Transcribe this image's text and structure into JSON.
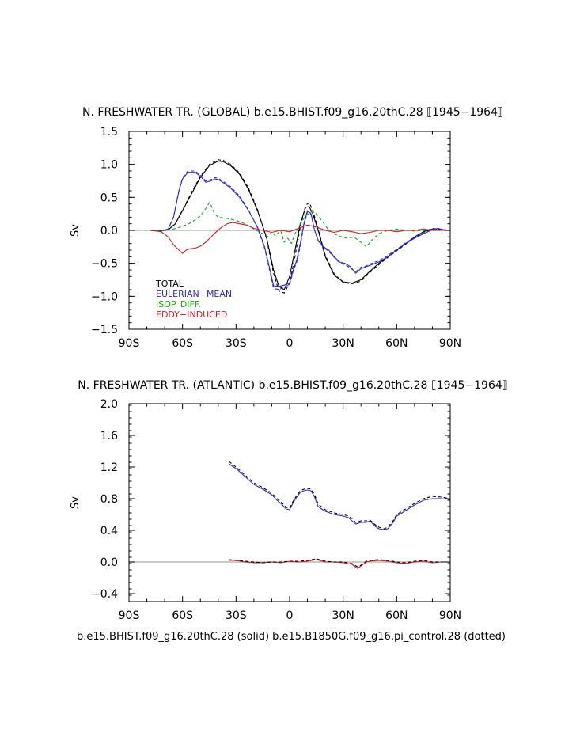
{
  "chart_data": [
    {
      "type": "line",
      "title": "N. FRESHWATER TR. (GLOBAL) b.e15.BHIST.f09_g16.20thC.28 ⟦1945−1964⟧",
      "xlabel": "",
      "ylabel": "Sv",
      "xlim": [
        -90,
        90
      ],
      "ylim": [
        -1.5,
        1.5
      ],
      "xticks": [
        -90,
        -60,
        -30,
        0,
        30,
        60,
        90
      ],
      "xtick_labels": [
        "90S",
        "60S",
        "30S",
        "0",
        "30N",
        "60N",
        "90N"
      ],
      "yticks": [
        -1.5,
        -1.0,
        -0.5,
        0.0,
        0.5,
        1.0,
        1.5
      ],
      "ytick_labels": [
        "−1.5",
        "−1.0",
        "−0.5",
        "0.0",
        "0.5",
        "1.0",
        "1.5"
      ],
      "legend": [
        "TOTAL",
        "EULERIAN−MEAN",
        "ISOP. DIFF.",
        "EDDY−INDUCED"
      ],
      "series": [
        {
          "name": "TOTAL",
          "color": "#000000",
          "dash": false,
          "x": [
            -78,
            -72,
            -68,
            -64,
            -60,
            -55,
            -50,
            -45,
            -40,
            -37,
            -33,
            -28,
            -23,
            -18,
            -13,
            -9,
            -6,
            -3,
            0,
            3,
            6,
            9,
            11,
            13,
            16,
            20,
            25,
            30,
            35,
            40,
            45,
            50,
            55,
            60,
            65,
            70,
            75,
            80,
            85,
            90
          ],
          "y": [
            0.0,
            -0.01,
            0.01,
            0.1,
            0.3,
            0.55,
            0.8,
            0.98,
            1.05,
            1.04,
            0.98,
            0.85,
            0.62,
            0.3,
            -0.1,
            -0.6,
            -0.85,
            -0.9,
            -0.7,
            -0.3,
            0.1,
            0.35,
            0.36,
            0.25,
            0.0,
            -0.4,
            -0.68,
            -0.78,
            -0.8,
            -0.75,
            -0.62,
            -0.5,
            -0.4,
            -0.3,
            -0.2,
            -0.1,
            -0.02,
            0.02,
            0.0,
            0.0
          ]
        },
        {
          "name": "TOTAL (control)",
          "color": "#000000",
          "dash": true,
          "x": [
            -78,
            -72,
            -68,
            -64,
            -60,
            -55,
            -50,
            -45,
            -40,
            -37,
            -33,
            -28,
            -23,
            -18,
            -13,
            -9,
            -6,
            -3,
            0,
            3,
            6,
            9,
            11,
            13,
            16,
            20,
            25,
            30,
            35,
            40,
            45,
            50,
            55,
            60,
            65,
            70,
            75,
            80,
            85,
            90
          ],
          "y": [
            0.0,
            -0.01,
            0.01,
            0.1,
            0.31,
            0.57,
            0.82,
            1.0,
            1.07,
            1.06,
            1.0,
            0.87,
            0.64,
            0.32,
            -0.12,
            -0.65,
            -0.92,
            -0.95,
            -0.8,
            -0.4,
            0.05,
            0.38,
            0.42,
            0.3,
            0.02,
            -0.38,
            -0.66,
            -0.79,
            -0.81,
            -0.77,
            -0.64,
            -0.52,
            -0.41,
            -0.31,
            -0.21,
            -0.11,
            -0.02,
            0.03,
            0.01,
            0.0
          ]
        },
        {
          "name": "EULERIAN−MEAN",
          "color": "#2b2bd6",
          "dash": false,
          "x": [
            -78,
            -72,
            -68,
            -65,
            -62,
            -60,
            -57,
            -53,
            -50,
            -47,
            -44,
            -42,
            -40,
            -37,
            -33,
            -28,
            -23,
            -18,
            -14,
            -11,
            -9,
            -6,
            -3,
            0,
            2,
            4,
            6,
            8,
            10,
            12,
            14,
            16,
            19,
            22,
            25,
            28,
            31,
            34,
            37,
            40,
            43,
            46,
            50,
            55,
            60,
            65,
            70,
            75,
            80,
            83,
            86,
            90
          ],
          "y": [
            0.0,
            -0.01,
            0.02,
            0.2,
            0.6,
            0.78,
            0.88,
            0.88,
            0.82,
            0.73,
            0.75,
            0.78,
            0.77,
            0.72,
            0.64,
            0.5,
            0.3,
            0.05,
            -0.25,
            -0.6,
            -0.84,
            -0.85,
            -0.83,
            -0.8,
            -0.6,
            -0.45,
            -0.2,
            0.1,
            0.3,
            0.25,
            0.0,
            -0.15,
            -0.25,
            -0.3,
            -0.4,
            -0.48,
            -0.5,
            -0.55,
            -0.65,
            -0.58,
            -0.55,
            -0.52,
            -0.48,
            -0.4,
            -0.3,
            -0.2,
            -0.12,
            -0.05,
            0.01,
            0.03,
            0.01,
            0.0
          ]
        },
        {
          "name": "EULERIAN−MEAN (control)",
          "color": "#2b2bd6",
          "dash": true,
          "x": [
            -78,
            -72,
            -68,
            -65,
            -62,
            -60,
            -57,
            -53,
            -50,
            -47,
            -44,
            -42,
            -40,
            -37,
            -33,
            -28,
            -23,
            -18,
            -14,
            -11,
            -9,
            -6,
            -3,
            0,
            2,
            4,
            6,
            8,
            10,
            12,
            14,
            16,
            19,
            22,
            25,
            28,
            31,
            34,
            37,
            40,
            43,
            46,
            50,
            55,
            60,
            65,
            70,
            75,
            80,
            83,
            86,
            90
          ],
          "y": [
            0.0,
            -0.01,
            0.02,
            0.21,
            0.61,
            0.8,
            0.9,
            0.9,
            0.84,
            0.75,
            0.77,
            0.8,
            0.79,
            0.74,
            0.66,
            0.52,
            0.31,
            0.04,
            -0.27,
            -0.63,
            -0.88,
            -0.9,
            -0.86,
            -0.82,
            -0.62,
            -0.48,
            -0.24,
            0.08,
            0.28,
            0.24,
            0.0,
            -0.16,
            -0.26,
            -0.32,
            -0.41,
            -0.49,
            -0.52,
            -0.57,
            -0.63,
            -0.56,
            -0.54,
            -0.5,
            -0.46,
            -0.38,
            -0.29,
            -0.19,
            -0.11,
            -0.04,
            0.02,
            0.03,
            0.01,
            0.0
          ]
        },
        {
          "name": "ISOP. DIFF.",
          "color": "#11aa11",
          "dash": true,
          "x": [
            -78,
            -70,
            -65,
            -60,
            -55,
            -50,
            -47,
            -45,
            -44,
            -42,
            -40,
            -35,
            -30,
            -25,
            -20,
            -15,
            -12,
            -10,
            -8,
            -5,
            -3,
            -1,
            1,
            3,
            6,
            9,
            12,
            15,
            18,
            22,
            27,
            32,
            36,
            40,
            43,
            46,
            50,
            55,
            60,
            65,
            70,
            75,
            80,
            85,
            90
          ],
          "y": [
            0.0,
            0.0,
            0.02,
            0.06,
            0.12,
            0.22,
            0.33,
            0.42,
            0.38,
            0.25,
            0.2,
            0.18,
            0.15,
            0.1,
            0.02,
            -0.05,
            -0.1,
            -0.02,
            -0.08,
            0.0,
            -0.18,
            -0.12,
            -0.2,
            -0.05,
            0.1,
            0.22,
            0.28,
            0.25,
            0.15,
            0.0,
            -0.08,
            -0.12,
            -0.1,
            -0.18,
            -0.25,
            -0.15,
            -0.05,
            0.0,
            0.02,
            0.0,
            -0.01,
            0.0,
            0.01,
            0.0,
            0.0
          ]
        },
        {
          "name": "EDDY−INDUCED",
          "color": "#d42020",
          "dash": false,
          "x": [
            -78,
            -72,
            -68,
            -65,
            -62,
            -60,
            -58,
            -56,
            -53,
            -50,
            -47,
            -44,
            -41,
            -38,
            -35,
            -32,
            -28,
            -24,
            -20,
            -15,
            -10,
            -5,
            0,
            5,
            10,
            15,
            20,
            25,
            30,
            35,
            40,
            45,
            50,
            55,
            60,
            65,
            70,
            75,
            80,
            85,
            90
          ],
          "y": [
            0.0,
            -0.02,
            -0.1,
            -0.22,
            -0.3,
            -0.35,
            -0.3,
            -0.28,
            -0.27,
            -0.24,
            -0.18,
            -0.1,
            -0.02,
            0.05,
            0.1,
            0.12,
            0.1,
            0.08,
            0.03,
            0.0,
            -0.03,
            0.0,
            -0.02,
            0.03,
            0.08,
            0.05,
            0.0,
            -0.03,
            0.0,
            -0.02,
            -0.05,
            -0.03,
            0.0,
            0.0,
            -0.02,
            0.0,
            0.0,
            0.02,
            0.0,
            0.0,
            0.0
          ]
        }
      ]
    },
    {
      "type": "line",
      "title": "N. FRESHWATER TR. (ATLANTIC) b.e15.BHIST.f09_g16.20thC.28 ⟦1945−1964⟧",
      "xlabel": "b.e15.BHIST.f09_g16.20thC.28 (solid) b.e15.B1850G.f09_g16.pi_control.28 (dotted)",
      "ylabel": "Sv",
      "xlim": [
        -90,
        90
      ],
      "ylim": [
        -0.5,
        2.0
      ],
      "xticks": [
        -90,
        -60,
        -30,
        0,
        30,
        60,
        90
      ],
      "xtick_labels": [
        "90S",
        "60S",
        "30S",
        "0",
        "30N",
        "60N",
        "90N"
      ],
      "yticks": [
        -0.4,
        0.0,
        0.4,
        0.8,
        1.2,
        1.6,
        2.0
      ],
      "ytick_labels": [
        "−0.4",
        "0.0",
        "0.4",
        "0.8",
        "1.2",
        "1.6",
        "2.0"
      ],
      "legend": [],
      "series": [
        {
          "name": "EULERIAN−MEAN",
          "color": "#2b2bd6",
          "dash": false,
          "x": [
            -34,
            -30,
            -25,
            -20,
            -15,
            -10,
            -7,
            -4,
            -2,
            0,
            2,
            4,
            6,
            8,
            10,
            12,
            14,
            16,
            20,
            25,
            30,
            33,
            35,
            37,
            40,
            43,
            45,
            48,
            50,
            53,
            55,
            58,
            60,
            63,
            65,
            70,
            75,
            80,
            85,
            90
          ],
          "y": [
            1.24,
            1.18,
            1.08,
            0.98,
            0.92,
            0.85,
            0.78,
            0.72,
            0.67,
            0.66,
            0.75,
            0.82,
            0.88,
            0.9,
            0.91,
            0.9,
            0.82,
            0.7,
            0.64,
            0.6,
            0.58,
            0.56,
            0.52,
            0.48,
            0.5,
            0.5,
            0.52,
            0.45,
            0.42,
            0.41,
            0.42,
            0.5,
            0.58,
            0.62,
            0.65,
            0.72,
            0.78,
            0.8,
            0.8,
            0.79
          ]
        },
        {
          "name": "EULERIAN−MEAN (control)",
          "color": "#000000",
          "dash": true,
          "x": [
            -34,
            -30,
            -25,
            -20,
            -15,
            -10,
            -7,
            -4,
            -2,
            0,
            2,
            4,
            6,
            8,
            10,
            12,
            14,
            16,
            20,
            25,
            30,
            33,
            35,
            37,
            40,
            43,
            45,
            48,
            50,
            53,
            55,
            58,
            60,
            63,
            65,
            70,
            75,
            80,
            85,
            90
          ],
          "y": [
            1.27,
            1.2,
            1.1,
            1.0,
            0.94,
            0.87,
            0.8,
            0.74,
            0.69,
            0.68,
            0.77,
            0.84,
            0.9,
            0.92,
            0.93,
            0.92,
            0.85,
            0.73,
            0.66,
            0.62,
            0.6,
            0.58,
            0.55,
            0.5,
            0.52,
            0.52,
            0.53,
            0.47,
            0.44,
            0.42,
            0.44,
            0.52,
            0.6,
            0.64,
            0.67,
            0.74,
            0.8,
            0.83,
            0.82,
            0.8
          ]
        },
        {
          "name": "EDDY−INDUCED",
          "color": "#d42020",
          "dash": false,
          "x": [
            -34,
            -30,
            -25,
            -20,
            -15,
            -10,
            -5,
            0,
            5,
            10,
            15,
            20,
            25,
            30,
            35,
            38,
            40,
            43,
            45,
            50,
            55,
            60,
            65,
            70,
            75,
            80,
            85,
            90
          ],
          "y": [
            0.02,
            0.02,
            0.0,
            -0.01,
            -0.01,
            0.0,
            -0.01,
            0.01,
            0.0,
            0.01,
            0.03,
            0.0,
            0.0,
            -0.01,
            -0.03,
            -0.08,
            -0.05,
            0.0,
            0.01,
            0.02,
            0.01,
            -0.01,
            -0.02,
            0.0,
            0.01,
            -0.01,
            0.0,
            0.0
          ]
        },
        {
          "name": "EDDY−INDUCED (control)",
          "color": "#000000",
          "dash": true,
          "x": [
            -34,
            -30,
            -25,
            -20,
            -15,
            -10,
            -5,
            0,
            5,
            10,
            15,
            20,
            25,
            30,
            35,
            38,
            40,
            43,
            45,
            50,
            55,
            60,
            65,
            70,
            75,
            80,
            85,
            90
          ],
          "y": [
            0.03,
            0.02,
            0.01,
            0.0,
            -0.01,
            0.0,
            0.0,
            0.01,
            0.01,
            0.02,
            0.04,
            0.01,
            0.0,
            0.0,
            -0.02,
            -0.06,
            -0.04,
            0.01,
            0.02,
            0.03,
            0.02,
            0.0,
            -0.01,
            0.01,
            0.02,
            0.0,
            0.0,
            0.0
          ]
        }
      ]
    }
  ]
}
